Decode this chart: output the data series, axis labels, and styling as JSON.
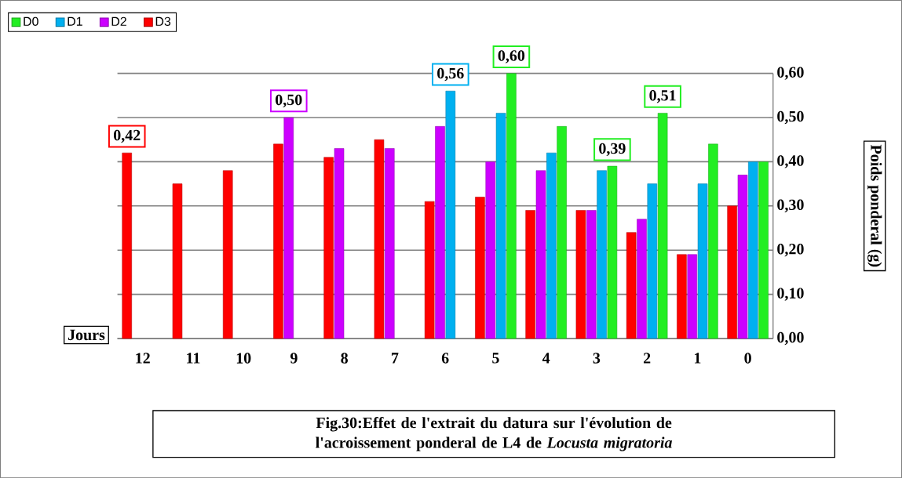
{
  "chart_data": {
    "type": "bar",
    "title": "Fig.30:Effet de l'extrait du datura sur l'évolution de l'acroissement ponderal de L4 de *Locusta migratoria*",
    "xlabel": "Jours",
    "ylabel": "Poids ponderal (g)",
    "categories": [
      "12",
      "11",
      "10",
      "9",
      "8",
      "7",
      "6",
      "5",
      "4",
      "3",
      "2",
      "1",
      "0"
    ],
    "series": [
      {
        "name": "D0",
        "color": "#22ee22",
        "values": [
          null,
          null,
          null,
          null,
          null,
          null,
          null,
          0.6,
          0.48,
          0.39,
          0.51,
          0.44,
          0.4
        ],
        "value_labels": [
          null,
          null,
          null,
          null,
          null,
          null,
          null,
          "0,60",
          null,
          "0,39",
          "0,51",
          null,
          null
        ]
      },
      {
        "name": "D1",
        "color": "#00b0f0",
        "values": [
          null,
          null,
          null,
          null,
          null,
          null,
          0.56,
          0.51,
          0.42,
          0.38,
          0.35,
          0.35,
          0.4
        ],
        "value_labels": [
          null,
          null,
          null,
          null,
          null,
          null,
          "0,56",
          null,
          null,
          null,
          null,
          null,
          null
        ]
      },
      {
        "name": "D2",
        "color": "#cc00ff",
        "values": [
          null,
          null,
          null,
          0.5,
          0.43,
          0.43,
          0.48,
          0.4,
          0.38,
          0.29,
          0.27,
          0.19,
          0.37
        ],
        "value_labels": [
          null,
          null,
          null,
          "0,50",
          null,
          null,
          null,
          null,
          null,
          null,
          null,
          null,
          null
        ]
      },
      {
        "name": "D3",
        "color": "#ff0000",
        "values": [
          0.42,
          0.35,
          0.38,
          0.44,
          0.41,
          0.45,
          0.31,
          0.32,
          0.29,
          0.29,
          0.24,
          0.19,
          0.3
        ],
        "value_labels": [
          "0,42",
          null,
          null,
          null,
          null,
          null,
          null,
          null,
          null,
          null,
          null,
          null,
          null
        ]
      }
    ],
    "ylim": [
      0,
      0.6
    ],
    "yticks": [
      {
        "value": 0,
        "label": "0,00"
      },
      {
        "value": 0.1,
        "label": "0,10"
      },
      {
        "value": 0.2,
        "label": "0,20"
      },
      {
        "value": 0.3,
        "label": "0,30"
      },
      {
        "value": 0.4,
        "label": "0,40"
      },
      {
        "value": 0.5,
        "label": "0,50"
      },
      {
        "value": 0.6,
        "label": "0,60"
      }
    ],
    "grid": "y",
    "legend": "top left"
  }
}
